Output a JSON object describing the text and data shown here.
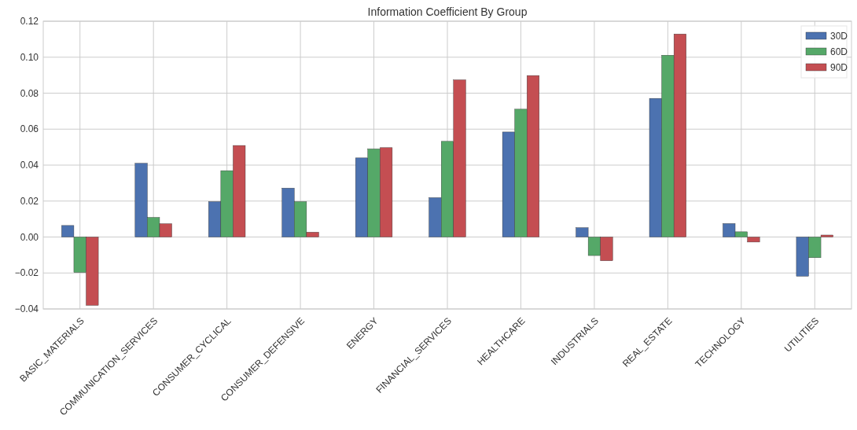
{
  "chart_data": {
    "type": "bar",
    "title": "Information Coefficient By Group",
    "categories": [
      "BASIC_MATERIALS",
      "COMMUNICATION_SERVICES",
      "CONSUMER_CYCLICAL",
      "CONSUMER_DEFENSIVE",
      "ENERGY",
      "FINANCIAL_SERVICES",
      "HEALTHCARE",
      "INDUSTRIALS",
      "REAL_ESTATE",
      "TECHNOLOGY",
      "UTILITIES"
    ],
    "series": [
      {
        "name": "30D",
        "color": "#4c72b0",
        "values": [
          0.0064,
          0.041,
          0.0197,
          0.0272,
          0.044,
          0.0219,
          0.0584,
          0.0052,
          0.0771,
          0.0075,
          -0.0218
        ]
      },
      {
        "name": "60D",
        "color": "#55a868",
        "values": [
          -0.0197,
          0.0109,
          0.0369,
          0.0197,
          0.049,
          0.0532,
          0.0711,
          -0.0103,
          0.1011,
          0.0029,
          -0.0115
        ]
      },
      {
        "name": "90D",
        "color": "#c44e52",
        "values": [
          -0.038,
          0.0074,
          0.0509,
          0.0027,
          0.0497,
          0.0874,
          0.0898,
          -0.0132,
          0.1129,
          -0.0028,
          0.0011
        ]
      }
    ],
    "ylim": [
      -0.04,
      0.12
    ],
    "yticks": [
      {
        "value": -0.04,
        "label": "−0.04"
      },
      {
        "value": -0.02,
        "label": "−0.02"
      },
      {
        "value": 0,
        "label": "0.00"
      },
      {
        "value": 0.02,
        "label": "0.02"
      },
      {
        "value": 0.04,
        "label": "0.04"
      },
      {
        "value": 0.06,
        "label": "0.06"
      },
      {
        "value": 0.08,
        "label": "0.08"
      },
      {
        "value": 0.1,
        "label": "0.10"
      },
      {
        "value": 0.12,
        "label": "0.12"
      }
    ],
    "grid": true,
    "legend": "top right"
  }
}
